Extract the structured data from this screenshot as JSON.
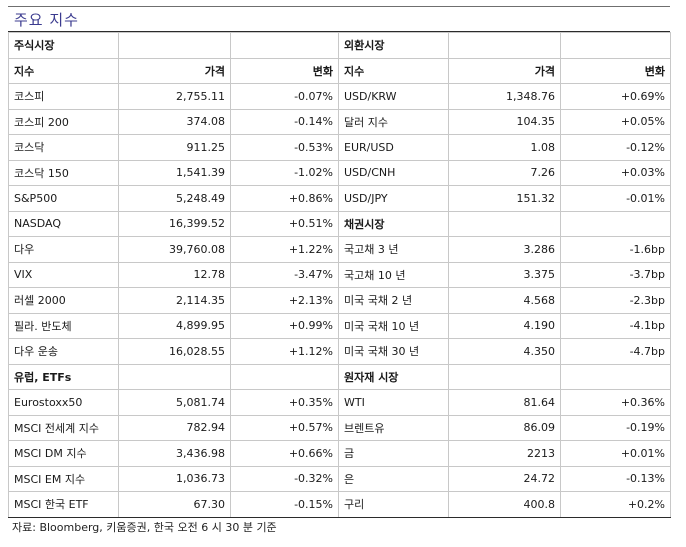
{
  "title": "주요 지수",
  "left_section": "주식시장",
  "right_section": "외환시장",
  "headers": {
    "name": "지수",
    "price": "가격",
    "change": "변화"
  },
  "right_headers": {
    "name": "지수",
    "price": "가격",
    "change": "변화"
  },
  "rows": [
    {
      "l": [
        "코스피",
        "2,755.11",
        "-0.07%"
      ],
      "r": [
        "USD/KRW",
        "1,348.76",
        "+0.69%"
      ]
    },
    {
      "l": [
        "코스피 200",
        "374.08",
        "-0.14%"
      ],
      "r": [
        "달러 지수",
        "104.35",
        "+0.05%"
      ]
    },
    {
      "l": [
        "코스닥",
        "911.25",
        "-0.53%"
      ],
      "r": [
        "EUR/USD",
        "1.08",
        "-0.12%"
      ]
    },
    {
      "l": [
        "코스닥 150",
        "1,541.39",
        "-1.02%"
      ],
      "r": [
        "USD/CNH",
        "7.26",
        "+0.03%"
      ]
    },
    {
      "l": [
        "S&P500",
        "5,248.49",
        "+0.86%"
      ],
      "r": [
        "USD/JPY",
        "151.32",
        "-0.01%"
      ]
    },
    {
      "l": [
        "NASDAQ",
        "16,399.52",
        "+0.51%"
      ],
      "rsec": "채권시장"
    },
    {
      "l": [
        "다우",
        "39,760.08",
        "+1.22%"
      ],
      "r": [
        "국고채 3 년",
        "3.286",
        "-1.6bp"
      ]
    },
    {
      "l": [
        "VIX",
        "12.78",
        "-3.47%"
      ],
      "r": [
        "국고채 10 년",
        "3.375",
        "-3.7bp"
      ]
    },
    {
      "l": [
        "러셀 2000",
        "2,114.35",
        "+2.13%"
      ],
      "r": [
        "미국 국채 2 년",
        "4.568",
        "-2.3bp"
      ]
    },
    {
      "l": [
        "필라. 반도체",
        "4,899.95",
        "+0.99%"
      ],
      "r": [
        "미국 국채 10 년",
        "4.190",
        "-4.1bp"
      ]
    },
    {
      "l": [
        "다우 운송",
        "16,028.55",
        "+1.12%"
      ],
      "r": [
        "미국 국채 30 년",
        "4.350",
        "-4.7bp"
      ]
    },
    {
      "lsec": "유럽, ETFs",
      "rsec": "원자재 시장"
    },
    {
      "l": [
        "Eurostoxx50",
        "5,081.74",
        "+0.35%"
      ],
      "r": [
        "WTI",
        "81.64",
        "+0.36%"
      ]
    },
    {
      "l": [
        "MSCI 전세계 지수",
        "782.94",
        "+0.57%"
      ],
      "r": [
        "브렌트유",
        "86.09",
        "-0.19%"
      ]
    },
    {
      "l": [
        "MSCI DM 지수",
        "3,436.98",
        "+0.66%"
      ],
      "r": [
        "금",
        "2213",
        "+0.01%"
      ]
    },
    {
      "l": [
        "MSCI EM 지수",
        "1,036.73",
        "-0.32%"
      ],
      "r": [
        "은",
        "24.72",
        "-0.13%"
      ]
    },
    {
      "l": [
        "MSCI 한국 ETF",
        "67.30",
        "-0.15%"
      ],
      "r": [
        "구리",
        "400.8",
        "+0.2%"
      ]
    }
  ],
  "footer": "자료: Bloomberg, 키움증권, 한국 오전 6 시 30 분 기준"
}
